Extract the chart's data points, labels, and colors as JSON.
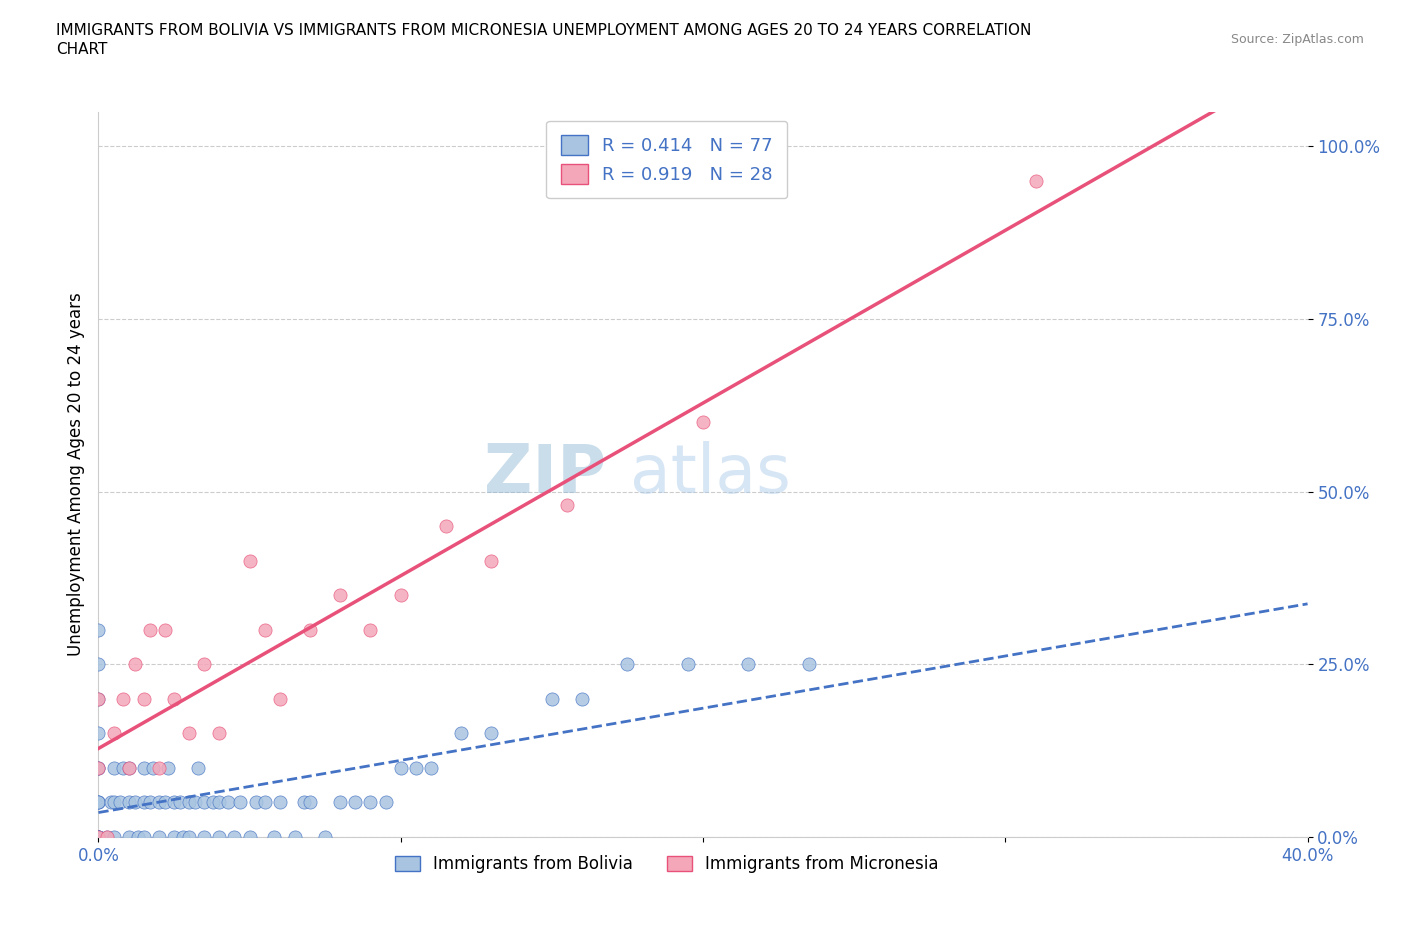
{
  "title_line1": "IMMIGRANTS FROM BOLIVIA VS IMMIGRANTS FROM MICRONESIA UNEMPLOYMENT AMONG AGES 20 TO 24 YEARS CORRELATION",
  "title_line2": "CHART",
  "source_text": "Source: ZipAtlas.com",
  "ylabel": "Unemployment Among Ages 20 to 24 years",
  "xlim": [
    0.0,
    0.4
  ],
  "ylim": [
    0.0,
    1.05
  ],
  "ytick_labels": [
    "0.0%",
    "25.0%",
    "50.0%",
    "75.0%",
    "100.0%"
  ],
  "ytick_vals": [
    0.0,
    0.25,
    0.5,
    0.75,
    1.0
  ],
  "xtick_labels": [
    "0.0%",
    "",
    "",
    "",
    "40.0%"
  ],
  "xtick_vals": [
    0.0,
    0.1,
    0.2,
    0.3,
    0.4
  ],
  "bolivia_color": "#a8c4e0",
  "micronesia_color": "#f4a7b9",
  "bolivia_line_color": "#4472c4",
  "micronesia_line_color": "#e8527a",
  "watermark_color": "#c8d8e8",
  "R_bolivia": 0.414,
  "N_bolivia": 77,
  "R_micronesia": 0.919,
  "N_micronesia": 28,
  "bolivia_x": [
    0.0,
    0.0,
    0.0,
    0.0,
    0.0,
    0.0,
    0.0,
    0.0,
    0.0,
    0.0,
    0.0,
    0.0,
    0.0,
    0.0,
    0.0,
    0.0,
    0.003,
    0.004,
    0.005,
    0.005,
    0.005,
    0.007,
    0.008,
    0.01,
    0.01,
    0.01,
    0.012,
    0.013,
    0.015,
    0.015,
    0.015,
    0.017,
    0.018,
    0.02,
    0.02,
    0.022,
    0.023,
    0.025,
    0.025,
    0.027,
    0.028,
    0.03,
    0.03,
    0.032,
    0.033,
    0.035,
    0.035,
    0.038,
    0.04,
    0.04,
    0.043,
    0.045,
    0.047,
    0.05,
    0.052,
    0.055,
    0.058,
    0.06,
    0.065,
    0.068,
    0.07,
    0.075,
    0.08,
    0.085,
    0.09,
    0.095,
    0.1,
    0.105,
    0.11,
    0.12,
    0.13,
    0.15,
    0.16,
    0.175,
    0.195,
    0.215,
    0.235
  ],
  "bolivia_y": [
    0.0,
    0.0,
    0.0,
    0.0,
    0.0,
    0.0,
    0.0,
    0.05,
    0.05,
    0.05,
    0.1,
    0.1,
    0.15,
    0.2,
    0.25,
    0.3,
    0.0,
    0.05,
    0.0,
    0.05,
    0.1,
    0.05,
    0.1,
    0.0,
    0.05,
    0.1,
    0.05,
    0.0,
    0.0,
    0.05,
    0.1,
    0.05,
    0.1,
    0.0,
    0.05,
    0.05,
    0.1,
    0.0,
    0.05,
    0.05,
    0.0,
    0.0,
    0.05,
    0.05,
    0.1,
    0.0,
    0.05,
    0.05,
    0.0,
    0.05,
    0.05,
    0.0,
    0.05,
    0.0,
    0.05,
    0.05,
    0.0,
    0.05,
    0.0,
    0.05,
    0.05,
    0.0,
    0.05,
    0.05,
    0.05,
    0.05,
    0.1,
    0.1,
    0.1,
    0.15,
    0.15,
    0.2,
    0.2,
    0.25,
    0.25,
    0.25,
    0.25
  ],
  "micronesia_x": [
    0.0,
    0.0,
    0.0,
    0.003,
    0.005,
    0.008,
    0.01,
    0.012,
    0.015,
    0.017,
    0.02,
    0.022,
    0.025,
    0.03,
    0.035,
    0.04,
    0.05,
    0.055,
    0.06,
    0.07,
    0.08,
    0.09,
    0.1,
    0.115,
    0.13,
    0.155,
    0.2,
    0.31
  ],
  "micronesia_y": [
    0.0,
    0.1,
    0.2,
    0.0,
    0.15,
    0.2,
    0.1,
    0.25,
    0.2,
    0.3,
    0.1,
    0.3,
    0.2,
    0.15,
    0.25,
    0.15,
    0.4,
    0.3,
    0.2,
    0.3,
    0.35,
    0.3,
    0.35,
    0.45,
    0.4,
    0.48,
    0.6,
    0.95
  ]
}
